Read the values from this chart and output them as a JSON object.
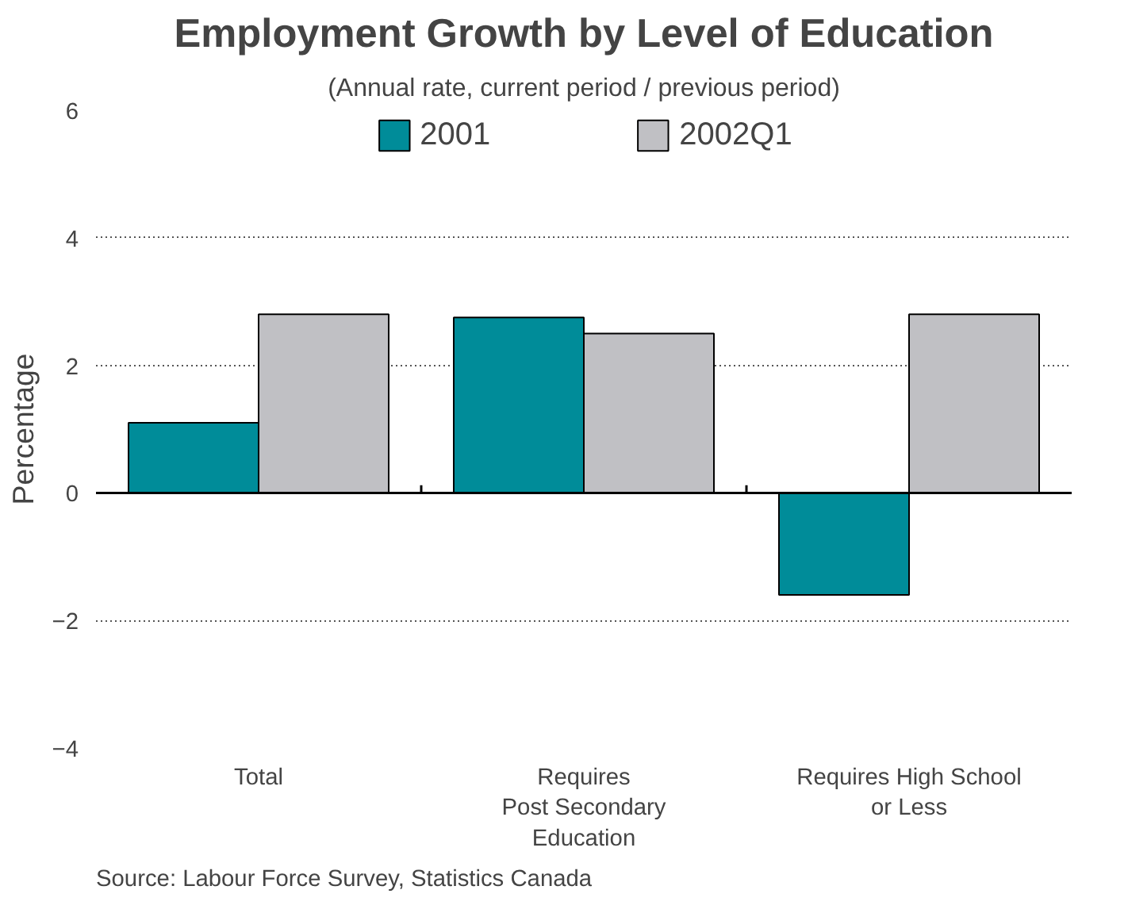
{
  "chart_data": {
    "type": "bar",
    "title": "Employment Growth by Level of Education",
    "subtitle": "(Annual rate, current period / previous period)",
    "ylabel": "Percentage",
    "categories": [
      "Total",
      "Requires\nPost Secondary\nEducation",
      "Requires High School\nor Less"
    ],
    "series": [
      {
        "name": "2001",
        "color": "#008c99",
        "values": [
          1.1,
          2.75,
          -1.6
        ]
      },
      {
        "name": "2002Q1",
        "color": "#c0c0c4",
        "values": [
          2.8,
          2.5,
          2.8
        ]
      }
    ],
    "ylim": [
      -4,
      6
    ],
    "yticks": [
      -4,
      -2,
      0,
      2,
      4,
      6
    ],
    "grid": "y",
    "legend": "top",
    "annotations": [
      "Source: Labour Force Survey, Statistics Canada"
    ]
  }
}
